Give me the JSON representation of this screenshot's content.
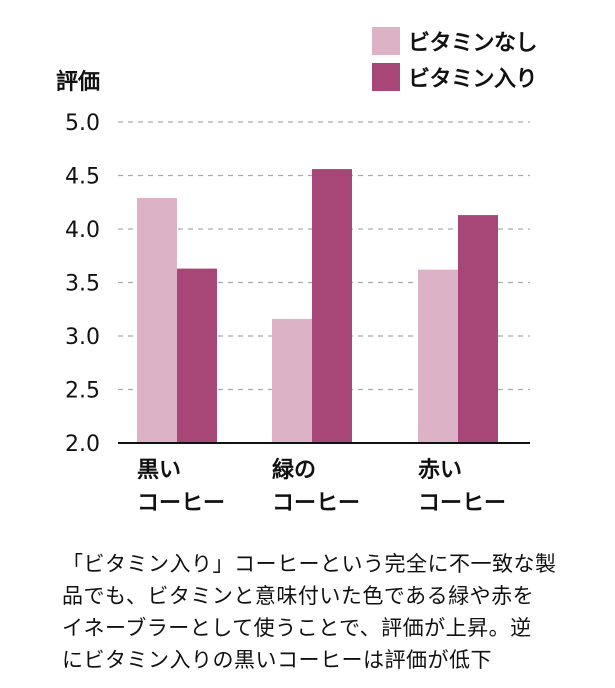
{
  "chart_data": {
    "type": "bar",
    "ylabel": "評価",
    "ylim": [
      2.0,
      5.0
    ],
    "yticks": [
      "2.0",
      "2.5",
      "3.0",
      "3.5",
      "4.0",
      "4.5",
      "5.0"
    ],
    "grid": true,
    "legend_position": "top-right",
    "categories": [
      [
        "黒い",
        "コーヒー"
      ],
      [
        "緑の",
        "コーヒー"
      ],
      [
        "赤い",
        "コーヒー"
      ]
    ],
    "series": [
      {
        "name": "ビタミンなし",
        "color": "#dcb3c6",
        "values": [
          4.29,
          3.16,
          3.62
        ]
      },
      {
        "name": "ビタミン入り",
        "color": "#a74777",
        "values": [
          3.63,
          4.56,
          4.13
        ]
      }
    ]
  },
  "caption": [
    "「ビタミン入り」コーヒーという完全に不一致な製",
    "品でも、ビタミンと意味付いた色である緑や赤を",
    "イネーブラーとして使うことで、評価が上昇。逆",
    "にビタミン入りの黒いコーヒーは評価が低下"
  ]
}
